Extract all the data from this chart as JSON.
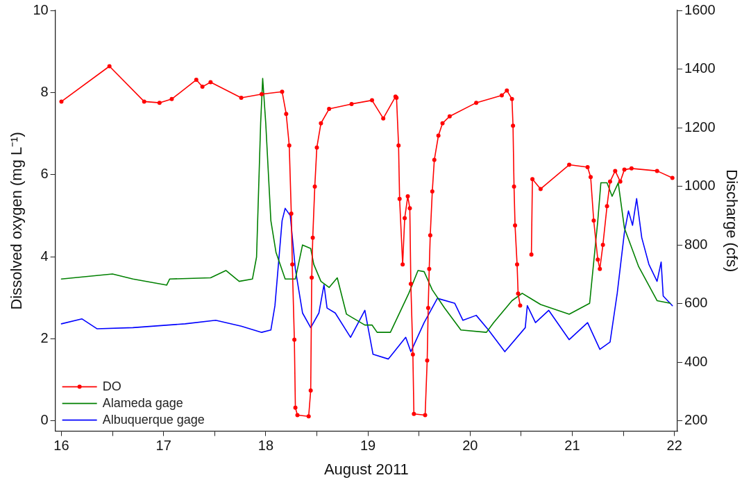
{
  "chart_data": {
    "type": "line",
    "xlabel": "August 2011",
    "ylabel": "Dissolved oxygen (mg L⁻¹)",
    "y2label": "Discharge (cfs)",
    "xlim": [
      15.94,
      22.03
    ],
    "xticks": [
      16,
      {
        "value": 16.5,
        "label": null
      },
      17,
      {
        "value": 17.5,
        "label": null
      },
      18,
      {
        "value": 18.5,
        "label": null
      },
      19,
      {
        "value": 19.5,
        "label": null
      },
      20,
      {
        "value": 20.5,
        "label": null
      },
      21,
      {
        "value": 21.5,
        "label": null
      },
      22
    ],
    "ylim": [
      -0.25,
      10
    ],
    "yticks": [
      0,
      2,
      4,
      6,
      8,
      10
    ],
    "y2lim": [
      165,
      1600
    ],
    "y2ticks": [
      200,
      400,
      600,
      800,
      1000,
      1200,
      1400,
      1600
    ],
    "grid": false,
    "legend": "bottom left",
    "line_style": "solid",
    "series": [
      {
        "name": "DO",
        "color": "#ff0000",
        "marker": "circle",
        "x": [
          16.0,
          16.47,
          16.81,
          16.96,
          17.08,
          17.32,
          17.38,
          17.46,
          17.76,
          17.96,
          18.16,
          18.2,
          18.23,
          18.25,
          18.26,
          18.28,
          18.29,
          18.31,
          18.42,
          18.44,
          18.45,
          18.46,
          18.48,
          18.5,
          18.54,
          18.62,
          18.84,
          19.04,
          19.15,
          19.27,
          19.28,
          19.3,
          19.31,
          19.34,
          19.36,
          19.39,
          19.41,
          19.42,
          19.44,
          19.45,
          19.56,
          19.58,
          19.59,
          19.6,
          19.61,
          19.63,
          19.65,
          19.69,
          19.73,
          19.8,
          20.06,
          20.31,
          20.36,
          20.41,
          20.42,
          20.43,
          20.44,
          20.46,
          20.47,
          20.49,
          20.55,
          20.6,
          20.61,
          20.69,
          20.97,
          21.15,
          21.18,
          21.21,
          21.25,
          21.27,
          21.3,
          21.34,
          21.37,
          21.42,
          21.47,
          21.51,
          21.58,
          21.83,
          21.98
        ],
        "values": [
          7.78,
          8.64,
          7.78,
          7.75,
          7.84,
          8.31,
          8.14,
          8.25,
          7.87,
          7.96,
          8.02,
          7.48,
          6.71,
          5.05,
          3.81,
          1.98,
          0.32,
          0.14,
          0.11,
          0.74,
          3.49,
          4.46,
          5.71,
          6.66,
          7.25,
          7.6,
          7.72,
          7.81,
          7.37,
          7.9,
          7.87,
          6.71,
          5.41,
          3.81,
          4.94,
          5.47,
          5.18,
          3.34,
          1.62,
          0.17,
          0.14,
          1.47,
          2.75,
          3.7,
          4.52,
          5.59,
          6.36,
          6.95,
          7.25,
          7.42,
          7.75,
          7.93,
          8.05,
          7.84,
          7.19,
          5.71,
          4.76,
          3.81,
          3.1,
          2.81,
          null,
          4.05,
          5.89,
          5.65,
          6.24,
          6.18,
          5.94,
          4.88,
          3.93,
          3.7,
          4.29,
          5.23,
          5.83,
          6.09,
          5.83,
          6.12,
          6.15,
          6.09,
          5.92
        ]
      },
      {
        "name": "Alameda gage",
        "color": "#008000",
        "axis": "y2",
        "x": [
          16.0,
          16.5,
          16.7,
          17.03,
          17.06,
          17.46,
          17.61,
          17.74,
          17.87,
          17.91,
          17.95,
          17.97,
          18.0,
          18.05,
          18.1,
          18.19,
          18.29,
          18.36,
          18.44,
          18.47,
          18.54,
          18.62,
          18.7,
          18.79,
          18.97,
          19.04,
          19.09,
          19.22,
          19.4,
          19.49,
          19.55,
          19.63,
          19.75,
          19.91,
          20.16,
          20.23,
          20.41,
          20.51,
          20.69,
          20.97,
          21.17,
          21.25,
          21.28,
          21.34,
          21.39,
          21.45,
          21.51,
          21.65,
          21.83,
          21.96
        ],
        "values": [
          684,
          701,
          684,
          663,
          684,
          688,
          713,
          676,
          684,
          759,
          1215,
          1368,
          1215,
          883,
          775,
          684,
          684,
          800,
          788,
          734,
          676,
          655,
          688,
          564,
          527,
          527,
          502,
          502,
          635,
          713,
          709,
          647,
          585,
          510,
          502,
          535,
          610,
          635,
          597,
          564,
          601,
          883,
          1012,
          1012,
          966,
          1012,
          858,
          726,
          610,
          601
        ]
      },
      {
        "name": "Albuquerque gage",
        "color": "#0000ff",
        "axis": "y2",
        "x": [
          16.0,
          16.2,
          16.35,
          16.7,
          17.21,
          17.51,
          17.76,
          17.96,
          18.05,
          18.09,
          18.16,
          18.19,
          18.24,
          18.29,
          18.36,
          18.44,
          18.52,
          18.57,
          18.6,
          18.68,
          18.83,
          18.97,
          19.05,
          19.2,
          19.37,
          19.42,
          19.55,
          19.68,
          19.85,
          19.93,
          20.06,
          20.18,
          20.34,
          20.54,
          20.56,
          20.64,
          20.77,
          20.97,
          21.15,
          21.27,
          21.37,
          21.44,
          21.51,
          21.55,
          21.59,
          21.63,
          21.68,
          21.75,
          21.83,
          21.87,
          21.89,
          21.98
        ],
        "values": [
          531,
          548,
          514,
          518,
          531,
          543,
          523,
          502,
          510,
          593,
          883,
          925,
          900,
          717,
          568,
          518,
          568,
          664,
          585,
          568,
          485,
          577,
          427,
          411,
          485,
          436,
          535,
          618,
          601,
          543,
          560,
          510,
          436,
          518,
          593,
          535,
          577,
          477,
          535,
          444,
          469,
          635,
          842,
          916,
          867,
          958,
          825,
          734,
          676,
          742,
          626,
          593
        ]
      }
    ]
  }
}
